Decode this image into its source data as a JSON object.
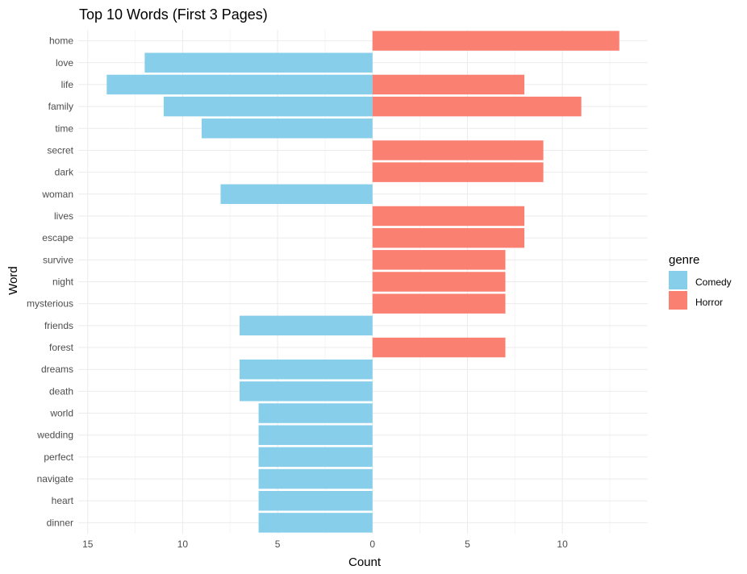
{
  "chart_data": {
    "type": "bar",
    "orientation": "horizontal",
    "title": "Top 10 Words (First 3 Pages)",
    "xlabel": "Count",
    "ylabel": "Word",
    "xlim": [
      -15.5,
      14.5
    ],
    "x_ticks": [
      {
        "value": -15,
        "label": "15"
      },
      {
        "value": -10,
        "label": "10"
      },
      {
        "value": -5,
        "label": "5"
      },
      {
        "value": 0,
        "label": "0"
      },
      {
        "value": 5,
        "label": "5"
      },
      {
        "value": 10,
        "label": "10"
      }
    ],
    "categories": [
      "home",
      "love",
      "life",
      "family",
      "time",
      "secret",
      "dark",
      "woman",
      "lives",
      "escape",
      "survive",
      "night",
      "mysterious",
      "friends",
      "forest",
      "dreams",
      "death",
      "world",
      "wedding",
      "perfect",
      "navigate",
      "heart",
      "dinner"
    ],
    "series": [
      {
        "name": "Comedy",
        "color": "#87CEEB",
        "direction": "left",
        "values": [
          0,
          12,
          14,
          11,
          9,
          0,
          0,
          8,
          0,
          0,
          0,
          0,
          0,
          7,
          0,
          7,
          7,
          6,
          6,
          6,
          6,
          6,
          6
        ]
      },
      {
        "name": "Horror",
        "color": "#FA8072",
        "direction": "right",
        "values": [
          13,
          0,
          8,
          11,
          0,
          9,
          9,
          0,
          8,
          8,
          7,
          7,
          7,
          0,
          7,
          0,
          0,
          0,
          0,
          0,
          0,
          0,
          0
        ]
      }
    ],
    "legend": {
      "title": "genre",
      "position": "right"
    },
    "grid": true
  }
}
